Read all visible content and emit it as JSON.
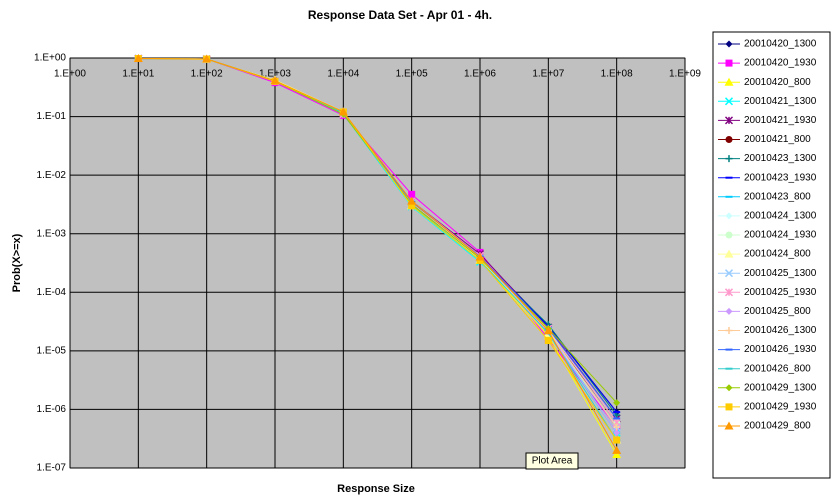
{
  "chart_data": {
    "type": "line",
    "title": "Response Data Set - Apr 01 - 4h.",
    "xlabel": "Response Size",
    "ylabel": "Prob(X>=x)",
    "tooltip": "Plot Area",
    "xscale": "log",
    "yscale": "log",
    "grid": true,
    "legend": "right",
    "xlim": [
      1,
      1000000000
    ],
    "ylim": [
      1e-07,
      1
    ],
    "xticks": [
      {
        "value": 1,
        "label": "1.E+00"
      },
      {
        "value": 10,
        "label": "1.E+01"
      },
      {
        "value": 100,
        "label": "1.E+02"
      },
      {
        "value": 1000,
        "label": "1.E+03"
      },
      {
        "value": 10000,
        "label": "1.E+04"
      },
      {
        "value": 100000,
        "label": "1.E+05"
      },
      {
        "value": 1000000,
        "label": "1.E+06"
      },
      {
        "value": 10000000,
        "label": "1.E+07"
      },
      {
        "value": 100000000,
        "label": "1.E+08"
      },
      {
        "value": 1000000000,
        "label": "1.E+09"
      }
    ],
    "yticks": [
      {
        "value": 1,
        "label": "1.E+00"
      },
      {
        "value": 0.1,
        "label": "1.E-01"
      },
      {
        "value": 0.01,
        "label": "1.E-02"
      },
      {
        "value": 0.001,
        "label": "1.E-03"
      },
      {
        "value": 0.0001,
        "label": "1.E-04"
      },
      {
        "value": 1e-05,
        "label": "1.E-05"
      },
      {
        "value": 1e-06,
        "label": "1.E-06"
      },
      {
        "value": 1e-07,
        "label": "1.E-07"
      }
    ],
    "x": [
      10,
      100,
      1000,
      10000,
      100000,
      1000000,
      10000000,
      100000000
    ],
    "series": [
      {
        "name": "20010420_1300",
        "color": "#000080",
        "marker": "diamond",
        "values": [
          0.98,
          0.96,
          0.4,
          0.11,
          0.0035,
          0.00042,
          2.7e-05,
          9e-07
        ]
      },
      {
        "name": "20010420_1930",
        "color": "#FF00FF",
        "marker": "square",
        "values": [
          0.98,
          0.96,
          0.38,
          0.105,
          0.0047,
          0.00048,
          1.6e-05,
          5e-07
        ]
      },
      {
        "name": "20010420_800",
        "color": "#FFFF00",
        "marker": "triangle",
        "values": [
          0.98,
          0.95,
          0.42,
          0.12,
          0.003,
          0.00035,
          1.8e-05,
          1.7e-07
        ]
      },
      {
        "name": "20010421_1300",
        "color": "#00FFFF",
        "marker": "x",
        "values": [
          0.98,
          0.96,
          0.4,
          0.11,
          0.0029,
          0.00033,
          2.2e-05,
          4e-07
        ]
      },
      {
        "name": "20010421_1930",
        "color": "#800080",
        "marker": "star",
        "values": [
          0.98,
          0.96,
          0.4,
          0.11,
          0.0036,
          0.00045,
          2.5e-05,
          7e-07
        ]
      },
      {
        "name": "20010421_800",
        "color": "#800000",
        "marker": "circle",
        "values": [
          0.98,
          0.96,
          0.41,
          0.11,
          0.0035,
          0.0004,
          2.2e-05,
          6e-07
        ]
      },
      {
        "name": "20010423_1300",
        "color": "#008080",
        "marker": "plus",
        "values": [
          0.98,
          0.96,
          0.4,
          0.11,
          0.0033,
          0.00038,
          2.8e-05,
          8e-07
        ]
      },
      {
        "name": "20010423_1930",
        "color": "#0000FF",
        "marker": "dash",
        "values": [
          0.98,
          0.96,
          0.4,
          0.11,
          0.0034,
          0.0004,
          2.6e-05,
          9e-07
        ]
      },
      {
        "name": "20010423_800",
        "color": "#00CCFF",
        "marker": "dash",
        "values": [
          0.98,
          0.96,
          0.41,
          0.115,
          0.0031,
          0.00036,
          2e-05,
          4e-07
        ]
      },
      {
        "name": "20010424_1300",
        "color": "#CCFFFF",
        "marker": "diamond",
        "values": [
          0.98,
          0.96,
          0.4,
          0.11,
          0.0032,
          0.00037,
          2.1e-05,
          5e-07
        ]
      },
      {
        "name": "20010424_1930",
        "color": "#CCFFCC",
        "marker": "circle",
        "values": [
          0.98,
          0.96,
          0.4,
          0.11,
          0.0034,
          0.00039,
          2.3e-05,
          6e-07
        ]
      },
      {
        "name": "20010424_800",
        "color": "#FFFF99",
        "marker": "triangle",
        "values": [
          0.98,
          0.95,
          0.42,
          0.12,
          0.003,
          0.00036,
          2e-05,
          3e-07
        ]
      },
      {
        "name": "20010425_1300",
        "color": "#99CCFF",
        "marker": "x",
        "values": [
          0.98,
          0.96,
          0.4,
          0.11,
          0.0033,
          0.00038,
          2.2e-05,
          5e-07
        ]
      },
      {
        "name": "20010425_1930",
        "color": "#FF99CC",
        "marker": "star",
        "values": [
          0.98,
          0.96,
          0.4,
          0.11,
          0.0036,
          0.00042,
          2.4e-05,
          6e-07
        ]
      },
      {
        "name": "20010425_800",
        "color": "#CC99FF",
        "marker": "diamond",
        "values": [
          0.98,
          0.96,
          0.41,
          0.11,
          0.0033,
          0.00039,
          2.1e-05,
          4e-07
        ]
      },
      {
        "name": "20010426_1300",
        "color": "#FFCC99",
        "marker": "plus",
        "values": [
          0.98,
          0.96,
          0.4,
          0.11,
          0.0034,
          0.0004,
          2.2e-05,
          5e-07
        ]
      },
      {
        "name": "20010426_1930",
        "color": "#3366FF",
        "marker": "dash",
        "values": [
          0.98,
          0.96,
          0.4,
          0.11,
          0.0035,
          0.00041,
          2.4e-05,
          7e-07
        ]
      },
      {
        "name": "20010426_800",
        "color": "#33CCCC",
        "marker": "dash",
        "values": [
          0.98,
          0.96,
          0.41,
          0.11,
          0.0031,
          0.00035,
          2e-05,
          3e-07
        ]
      },
      {
        "name": "20010429_1300",
        "color": "#99CC00",
        "marker": "diamond",
        "values": [
          0.98,
          0.96,
          0.4,
          0.11,
          0.0032,
          0.00038,
          2.4e-05,
          1.3e-06
        ]
      },
      {
        "name": "20010429_1930",
        "color": "#FFCC00",
        "marker": "square",
        "values": [
          0.98,
          0.96,
          0.4,
          0.12,
          0.003,
          0.00035,
          1.5e-05,
          3e-07
        ]
      },
      {
        "name": "20010429_800",
        "color": "#FF9900",
        "marker": "triangle",
        "values": [
          0.98,
          0.96,
          0.41,
          0.12,
          0.0036,
          0.0004,
          2.2e-05,
          2e-07
        ]
      }
    ]
  }
}
